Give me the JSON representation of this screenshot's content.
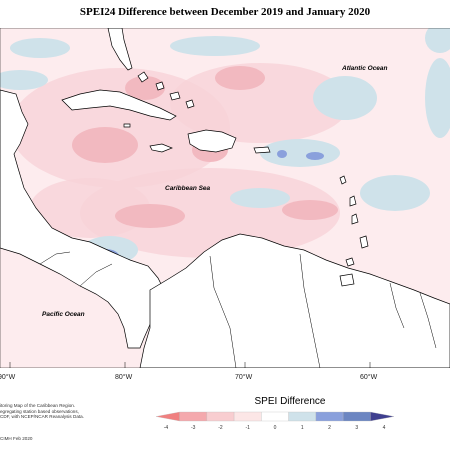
{
  "title": "SPEI24 Difference between December 2019 and January 2020",
  "labels": {
    "atlantic": "Atlantic Ocean",
    "caribbean": "Caribbean Sea",
    "pacific": "Pacific Ocean"
  },
  "longitude_ticks": [
    "90°W",
    "80°W",
    "70°W",
    "60°W"
  ],
  "legend": {
    "title": "SPEI Difference",
    "ticks": [
      "-4",
      "-3",
      "-2",
      "-1",
      "0",
      "1",
      "2",
      "3",
      "4"
    ],
    "colors": [
      "#f08080",
      "#f4a9ad",
      "#f8cdd0",
      "#fce6e6",
      "#ffffff",
      "#cfe2ea",
      "#8aa0dc",
      "#6c86c2",
      "#3f3f8f"
    ]
  },
  "credit_lines": [
    "itoring Map of the Caribbean Region.",
    "egregating station based observations,",
    "CDF, with NCEP/NCAR Reanalysis Data."
  ],
  "copyright": "CIMH Feb 2020",
  "colors": {
    "sea_base": "#fdecee",
    "light_pink": "#f8d3d8",
    "medium_pink": "#f2b9c0",
    "light_blue": "#cfe2ea",
    "blue": "#8aa0dc",
    "land": "#ffffff",
    "border": "#000000"
  }
}
